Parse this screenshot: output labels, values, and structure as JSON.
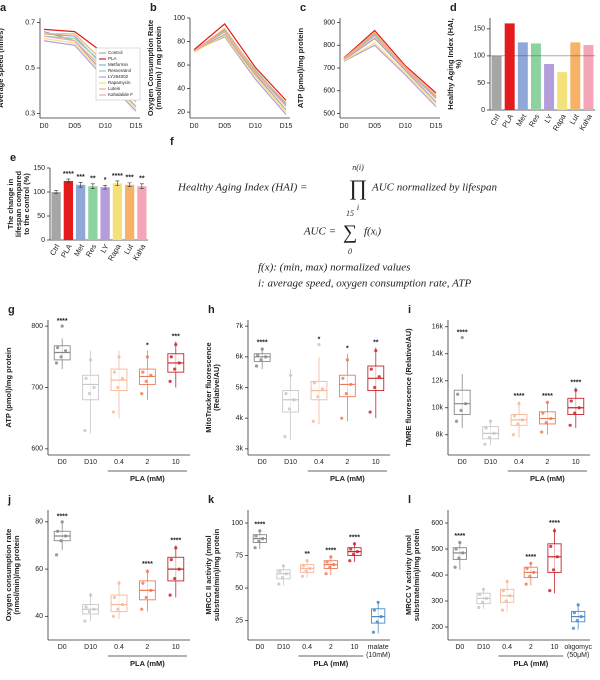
{
  "chart_data": [
    {
      "panel": "a",
      "type": "line",
      "ylabel": "Average speed (mm/s)",
      "categories": [
        "D0",
        "D05",
        "D10",
        "D15"
      ],
      "ylim": [
        0.28,
        0.72
      ],
      "yticks": [
        0.3,
        0.5,
        0.7
      ],
      "legend": "right",
      "series": [
        {
          "name": "Control",
          "color": "#a6a6a6",
          "values": [
            0.66,
            0.62,
            0.47,
            0.33
          ]
        },
        {
          "name": "PLA",
          "color": "#e41a1c",
          "values": [
            0.67,
            0.66,
            0.56,
            0.4
          ]
        },
        {
          "name": "Metformin",
          "color": "#8fa8d8",
          "values": [
            0.65,
            0.64,
            0.5,
            0.36
          ]
        },
        {
          "name": "Resveratrol",
          "color": "#8dd3a0",
          "values": [
            0.64,
            0.63,
            0.51,
            0.37
          ]
        },
        {
          "name": "LY294002",
          "color": "#b39ddb",
          "values": [
            0.62,
            0.6,
            0.45,
            0.31
          ]
        },
        {
          "name": "Rapamycin",
          "color": "#f5e17a",
          "values": [
            0.63,
            0.61,
            0.46,
            0.32
          ]
        },
        {
          "name": "Lutein",
          "color": "#f7b267",
          "values": [
            0.65,
            0.65,
            0.52,
            0.38
          ]
        },
        {
          "name": "Kahalalide F",
          "color": "#f4a6b8",
          "values": [
            0.64,
            0.62,
            0.49,
            0.35
          ]
        }
      ]
    },
    {
      "panel": "b",
      "type": "line",
      "ylabel": "Oxygen Consumption Rate (nmol/min) / mg protein",
      "categories": [
        "D0",
        "D05",
        "D10",
        "D15"
      ],
      "ylim": [
        15,
        100
      ],
      "yticks": [
        20,
        40,
        60,
        80,
        100
      ],
      "series": [
        {
          "color": "#a6a6a6",
          "values": [
            72,
            86,
            52,
            22
          ]
        },
        {
          "color": "#e41a1c",
          "values": [
            73,
            95,
            58,
            30
          ]
        },
        {
          "color": "#8fa8d8",
          "values": [
            72,
            90,
            55,
            26
          ]
        },
        {
          "color": "#8dd3a0",
          "values": [
            71,
            89,
            56,
            27
          ]
        },
        {
          "color": "#b39ddb",
          "values": [
            72,
            84,
            48,
            18
          ]
        },
        {
          "color": "#f5e17a",
          "values": [
            71,
            85,
            50,
            20
          ]
        },
        {
          "color": "#f7b267",
          "values": [
            72,
            91,
            54,
            28
          ]
        },
        {
          "color": "#f4a6b8",
          "values": [
            72,
            88,
            53,
            25
          ]
        }
      ]
    },
    {
      "panel": "c",
      "type": "line",
      "ylabel": "ATP (pmol)/mg protein",
      "categories": [
        "D0",
        "D05",
        "D10",
        "D15"
      ],
      "ylim": [
        480,
        920
      ],
      "yticks": [
        500,
        600,
        700,
        800,
        900
      ],
      "series": [
        {
          "color": "#a6a6a6",
          "values": [
            735,
            830,
            690,
            550
          ]
        },
        {
          "color": "#e41a1c",
          "values": [
            745,
            865,
            710,
            590
          ]
        },
        {
          "color": "#8fa8d8",
          "values": [
            740,
            850,
            700,
            570
          ]
        },
        {
          "color": "#8dd3a0",
          "values": [
            738,
            845,
            705,
            575
          ]
        },
        {
          "color": "#b39ddb",
          "values": [
            730,
            800,
            670,
            530
          ]
        },
        {
          "color": "#f5e17a",
          "values": [
            732,
            810,
            680,
            540
          ]
        },
        {
          "color": "#f7b267",
          "values": [
            742,
            855,
            700,
            580
          ]
        },
        {
          "color": "#f4a6b8",
          "values": [
            738,
            840,
            695,
            565
          ]
        }
      ]
    },
    {
      "panel": "d",
      "type": "bar",
      "ylabel": "Healthy Aging Index (HAI, %)",
      "categories": [
        "Ctrl",
        "PLA",
        "Met",
        "Res",
        "LY",
        "Rapa",
        "Lut",
        "Kaha"
      ],
      "values": [
        100,
        160,
        125,
        123,
        85,
        70,
        125,
        120
      ],
      "colors": [
        "#a6a6a6",
        "#e41a1c",
        "#8fa8d8",
        "#8dd3a0",
        "#b39ddb",
        "#f5e17a",
        "#f7b267",
        "#f4a6b8"
      ],
      "ylim": [
        0,
        170
      ],
      "yticks": [
        0,
        50,
        100,
        150
      ],
      "refline": 100
    },
    {
      "panel": "e",
      "type": "bar",
      "ylabel": "The change in lifespan compared to the control (%)",
      "categories": [
        "Ctrl",
        "PLA",
        "Met",
        "Res",
        "LY",
        "Rapa",
        "Lut",
        "Kaha"
      ],
      "values": [
        100,
        123,
        115,
        112,
        110,
        118,
        115,
        112
      ],
      "errors": [
        3,
        4,
        5,
        5,
        4,
        5,
        4,
        5
      ],
      "significance": [
        null,
        "****",
        "***",
        "**",
        "*",
        "****",
        "***",
        "**"
      ],
      "colors": [
        "#a6a6a6",
        "#e41a1c",
        "#8fa8d8",
        "#8dd3a0",
        "#b39ddb",
        "#f5e17a",
        "#f7b267",
        "#f4a6b8"
      ],
      "ylim": [
        0,
        150
      ],
      "yticks": [
        0,
        50,
        100,
        150
      ]
    },
    {
      "panel": "f",
      "type": "equation",
      "hai_lhs": "Healthy Aging Index (HAI) =",
      "prod": "∏",
      "prod_top": "n(i)",
      "prod_bottom": "i",
      "hai_rhs": "AUC normalized by lifespan",
      "auc_lhs": "AUC =",
      "sum": "∑",
      "sum_top": "15",
      "sum_bottom": "0",
      "auc_rhs": "f(xᵢ)",
      "note1": "f(x): (min, max) normalized values",
      "note2": "i: average speed, oxygen consumption rate, ATP"
    },
    {
      "panel": "g",
      "type": "box",
      "ylabel": "ATP (pmol)/mg protein",
      "group_label": "PLA (mM)",
      "categories": [
        "D0",
        "D10",
        "0.4",
        "2",
        "10"
      ],
      "colors": [
        "#888888",
        "#c8c8c8",
        "#f6b89a",
        "#ee7b5a",
        "#c9242b"
      ],
      "significance": [
        "****",
        null,
        null,
        "*",
        "***"
      ],
      "ylim": [
        590,
        810
      ],
      "yticks": [
        600,
        700,
        800
      ],
      "boxes": [
        {
          "min": 730,
          "q1": 745,
          "median": 757,
          "q3": 768,
          "max": 780,
          "points": [
            740,
            750,
            760,
            765,
            800
          ]
        },
        {
          "min": 625,
          "q1": 680,
          "median": 705,
          "q3": 720,
          "max": 760,
          "points": [
            630,
            690,
            700,
            715,
            745
          ]
        },
        {
          "min": 650,
          "q1": 695,
          "median": 712,
          "q3": 730,
          "max": 760,
          "points": [
            660,
            700,
            715,
            725,
            750
          ]
        },
        {
          "min": 680,
          "q1": 705,
          "median": 718,
          "q3": 730,
          "max": 760,
          "points": [
            690,
            710,
            720,
            725,
            750
          ]
        },
        {
          "min": 700,
          "q1": 725,
          "median": 740,
          "q3": 755,
          "max": 775,
          "points": [
            710,
            730,
            740,
            750,
            770
          ]
        }
      ]
    },
    {
      "panel": "h",
      "type": "box",
      "ylabel": "MitoTracker fluorescence (Relative/AU)",
      "group_label": "PLA (mM)",
      "categories": [
        "D0",
        "D10",
        "0.4",
        "2",
        "10"
      ],
      "colors": [
        "#888888",
        "#c8c8c8",
        "#f6b89a",
        "#ee7b5a",
        "#c9242b"
      ],
      "significance": [
        "****",
        null,
        "*",
        "*",
        "**"
      ],
      "ylim": [
        2800,
        7200
      ],
      "yticks": [
        {
          "value": 3000,
          "label": "3k"
        },
        {
          "value": 4000,
          "label": "4k"
        },
        {
          "value": 5000,
          "label": "5k"
        },
        {
          "value": 6000,
          "label": "6k"
        },
        {
          "value": 7000,
          "label": "7k"
        }
      ],
      "boxes": [
        {
          "min": 5600,
          "q1": 5850,
          "median": 6000,
          "q3": 6100,
          "max": 6300,
          "points": [
            5700,
            5900,
            6000,
            6050,
            6250
          ]
        },
        {
          "min": 3300,
          "q1": 4200,
          "median": 4600,
          "q3": 4900,
          "max": 5600,
          "points": [
            3400,
            4300,
            4600,
            4800,
            5400
          ]
        },
        {
          "min": 3800,
          "q1": 4600,
          "median": 4900,
          "q3": 5200,
          "max": 6000,
          "points": [
            3900,
            4700,
            4950,
            5150,
            6400
          ]
        },
        {
          "min": 3900,
          "q1": 4700,
          "median": 5100,
          "q3": 5400,
          "max": 6100,
          "points": [
            4000,
            4800,
            5100,
            5300,
            5900
          ]
        },
        {
          "min": 4000,
          "q1": 4900,
          "median": 5300,
          "q3": 5700,
          "max": 6300,
          "points": [
            4200,
            5000,
            5350,
            5600,
            6200
          ]
        }
      ]
    },
    {
      "panel": "i",
      "type": "box",
      "ylabel": "TMRE fluorescence (Relative/AU)",
      "group_label": "PLA (mM)",
      "categories": [
        "D0",
        "D10",
        "0.4",
        "2",
        "10"
      ],
      "colors": [
        "#888888",
        "#c8c8c8",
        "#f6b89a",
        "#ee7b5a",
        "#c9242b"
      ],
      "significance": [
        "****",
        null,
        "****",
        "****",
        "****"
      ],
      "ylim": [
        6500,
        16500
      ],
      "yticks": [
        {
          "value": 8000,
          "label": "8k"
        },
        {
          "value": 10000,
          "label": "10k"
        },
        {
          "value": 12000,
          "label": "12k"
        },
        {
          "value": 14000,
          "label": "14k"
        },
        {
          "value": 16000,
          "label": "16k"
        }
      ],
      "boxes": [
        {
          "min": 8500,
          "q1": 9500,
          "median": 10300,
          "q3": 11300,
          "max": 12500,
          "points": [
            9000,
            9800,
            10300,
            11000,
            15200
          ]
        },
        {
          "min": 7200,
          "q1": 7700,
          "median": 8100,
          "q3": 8600,
          "max": 9100,
          "points": [
            7300,
            7800,
            8100,
            8500,
            9000
          ]
        },
        {
          "min": 7800,
          "q1": 8700,
          "median": 9100,
          "q3": 9500,
          "max": 10500,
          "points": [
            8000,
            8800,
            9100,
            9400,
            10300
          ]
        },
        {
          "min": 8000,
          "q1": 8800,
          "median": 9200,
          "q3": 9700,
          "max": 10500,
          "points": [
            8200,
            8900,
            9200,
            9600,
            10400
          ]
        },
        {
          "min": 8500,
          "q1": 9500,
          "median": 10000,
          "q3": 10700,
          "max": 11500,
          "points": [
            8700,
            9600,
            10000,
            10500,
            11300
          ]
        }
      ]
    },
    {
      "panel": "j",
      "type": "box",
      "ylabel": "Oxygen consumption rate (nmol/min)/mg protein",
      "group_label": "PLA (mM)",
      "categories": [
        "D0",
        "D10",
        "0.4",
        "2",
        "10"
      ],
      "colors": [
        "#888888",
        "#c8c8c8",
        "#f6b89a",
        "#ee7b5a",
        "#c9242b"
      ],
      "significance": [
        "****",
        null,
        null,
        "****",
        "****"
      ],
      "ylim": [
        30,
        85
      ],
      "yticks": [
        40,
        60,
        80
      ],
      "boxes": [
        {
          "min": 68,
          "q1": 72,
          "median": 74,
          "q3": 76,
          "max": 80,
          "points": [
            66,
            72,
            74,
            76,
            80
          ]
        },
        {
          "min": 38,
          "q1": 41,
          "median": 43,
          "q3": 45,
          "max": 50,
          "points": [
            38,
            42,
            43,
            44,
            49
          ]
        },
        {
          "min": 39,
          "q1": 42,
          "median": 45,
          "q3": 49,
          "max": 55,
          "points": [
            40,
            43,
            45,
            48,
            54
          ]
        },
        {
          "min": 42,
          "q1": 47,
          "median": 51,
          "q3": 55,
          "max": 60,
          "points": [
            43,
            48,
            51,
            54,
            59
          ]
        },
        {
          "min": 48,
          "q1": 55,
          "median": 60,
          "q3": 65,
          "max": 70,
          "points": [
            49,
            56,
            60,
            64,
            69
          ]
        }
      ]
    },
    {
      "panel": "k",
      "type": "box",
      "ylabel": "MRCC II activity (nmol substrate/min)/mg protein",
      "group_label": "PLA (mM)",
      "categories": [
        "D0",
        "D10",
        "0.4",
        "2",
        "10",
        "malate (10mM)"
      ],
      "colors": [
        "#888888",
        "#c8c8c8",
        "#f6b89a",
        "#ee7b5a",
        "#c9242b",
        "#4a8ac6"
      ],
      "significance": [
        "****",
        null,
        "**",
        "****",
        "****",
        null
      ],
      "ylim": [
        10,
        110
      ],
      "yticks": [
        25,
        50,
        75,
        100
      ],
      "boxes": [
        {
          "min": 80,
          "q1": 85,
          "median": 88,
          "q3": 91,
          "max": 95,
          "points": [
            81,
            86,
            88,
            90,
            94
          ]
        },
        {
          "min": 52,
          "q1": 57,
          "median": 61,
          "q3": 64,
          "max": 68,
          "points": [
            53,
            58,
            61,
            63,
            67
          ]
        },
        {
          "min": 58,
          "q1": 62,
          "median": 65,
          "q3": 68,
          "max": 72,
          "points": [
            59,
            63,
            65,
            67,
            71
          ]
        },
        {
          "min": 60,
          "q1": 65,
          "median": 68,
          "q3": 71,
          "max": 75,
          "points": [
            61,
            66,
            68,
            70,
            74
          ]
        },
        {
          "min": 70,
          "q1": 75,
          "median": 78,
          "q3": 81,
          "max": 85,
          "points": [
            71,
            76,
            78,
            80,
            84
          ]
        },
        {
          "min": 15,
          "q1": 23,
          "median": 28,
          "q3": 34,
          "max": 40,
          "points": [
            16,
            24,
            28,
            33,
            39
          ]
        }
      ]
    },
    {
      "panel": "l",
      "type": "box",
      "ylabel": "MRCC V activity (nmol substrate/min)/mg protein",
      "group_label": "PLA (mM)",
      "categories": [
        "D0",
        "D10",
        "0.4",
        "2",
        "10",
        "oligomycin (50μM)"
      ],
      "colors": [
        "#888888",
        "#c8c8c8",
        "#f6b89a",
        "#ee7b5a",
        "#c9242b",
        "#4a8ac6"
      ],
      "significance": [
        "****",
        null,
        null,
        "****",
        "****",
        null
      ],
      "ylim": [
        150,
        650
      ],
      "yticks": [
        200,
        300,
        400,
        500,
        600
      ],
      "boxes": [
        {
          "min": 420,
          "q1": 460,
          "median": 485,
          "q3": 505,
          "max": 530,
          "points": [
            430,
            465,
            485,
            500,
            525
          ]
        },
        {
          "min": 270,
          "q1": 290,
          "median": 310,
          "q3": 330,
          "max": 350,
          "points": [
            275,
            295,
            310,
            325,
            345
          ]
        },
        {
          "min": 260,
          "q1": 295,
          "median": 320,
          "q3": 345,
          "max": 380,
          "points": [
            265,
            300,
            320,
            340,
            375
          ]
        },
        {
          "min": 360,
          "q1": 390,
          "median": 410,
          "q3": 430,
          "max": 450,
          "points": [
            365,
            395,
            410,
            425,
            445
          ]
        },
        {
          "min": 330,
          "q1": 410,
          "median": 470,
          "q3": 520,
          "max": 580,
          "points": [
            340,
            420,
            470,
            510,
            570
          ]
        },
        {
          "min": 190,
          "q1": 220,
          "median": 240,
          "q3": 260,
          "max": 290,
          "points": [
            195,
            225,
            240,
            255,
            285
          ]
        }
      ]
    }
  ]
}
